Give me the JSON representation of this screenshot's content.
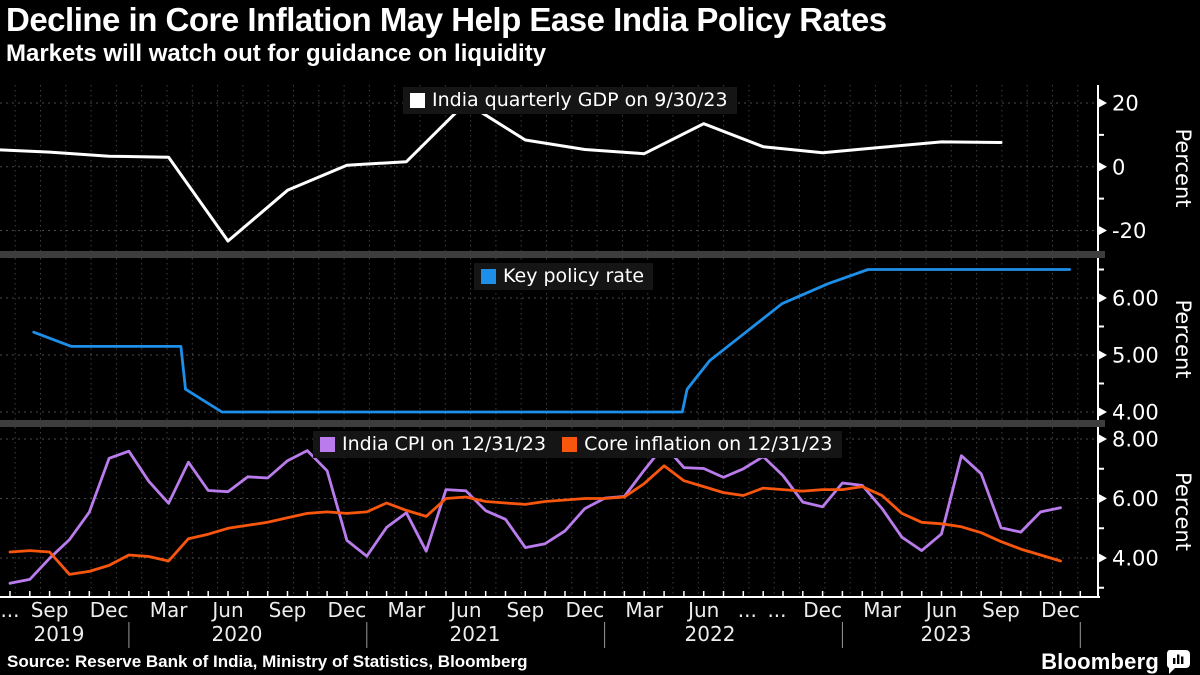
{
  "header": {
    "title": "Decline in Core Inflation May Help Ease India Policy Rates",
    "subtitle": "Markets will watch out for guidance on liquidity"
  },
  "footer": {
    "source": "Source: Reserve Bank of India, Ministry of Statistics, Bloomberg",
    "logo_text": "Bloomberg",
    "logo_icon": "bar-chart-speech-bubble-icon"
  },
  "colors": {
    "background": "#000000",
    "gdp_line": "#FFFFFF",
    "policy_line": "#1E8FE8",
    "cpi_line": "#BA7CEC",
    "core_line": "#F8560D",
    "grid_h": "#4a4a4a",
    "grid_v": "#3e3e3e",
    "divider": "#3d3d3d",
    "axis": "#FFFFFF",
    "tick_label": "#FFFFFF",
    "month_label": "#EDEDED",
    "year_separator": "#9a9a9a",
    "legend_bg": "#151515"
  },
  "dividers": [
    251,
    420
  ],
  "chart_data": [
    {
      "type": "line",
      "panel": "gdp",
      "legend": [
        {
          "label": "India quarterly GDP on 9/30/23",
          "color": "#FFFFFF",
          "marker": "square"
        }
      ],
      "ylabel": "Percent",
      "ylim": [
        -26,
        25.5
      ],
      "grid": true,
      "legend_position": "top-center",
      "top": 85,
      "bottom": 251,
      "y_map": {
        "v_top": 20,
        "y_top": 103,
        "v_bot": -20,
        "y_bot": 230.5
      },
      "yticks": [
        {
          "value": 20,
          "label": "20"
        },
        {
          "value": 0,
          "label": "0"
        },
        {
          "value": -20,
          "label": "-20"
        }
      ],
      "minor_ticks": [
        10,
        -10
      ],
      "series": [
        {
          "name": "India quarterly GDP",
          "color": "#FFFFFF",
          "width": 3,
          "points": [
            [
              "2019-06-01",
              5.4
            ],
            [
              "2019-09-01",
              4.6
            ],
            [
              "2019-12-01",
              3.3
            ],
            [
              "2020-03-01",
              3.0
            ],
            [
              "2020-06-01",
              -23.3
            ],
            [
              "2020-09-01",
              -7.4
            ],
            [
              "2020-12-01",
              0.5
            ],
            [
              "2021-03-01",
              1.6
            ],
            [
              "2021-06-01",
              20.1
            ],
            [
              "2021-09-01",
              8.4
            ],
            [
              "2021-12-01",
              5.4
            ],
            [
              "2022-03-01",
              4.1
            ],
            [
              "2022-06-01",
              13.5
            ],
            [
              "2022-09-01",
              6.3
            ],
            [
              "2022-12-01",
              4.4
            ],
            [
              "2023-03-01",
              6.1
            ],
            [
              "2023-06-01",
              7.8
            ],
            [
              "2023-09-01",
              7.6
            ]
          ]
        }
      ]
    },
    {
      "type": "line",
      "panel": "policy-rate",
      "legend": [
        {
          "label": "Key policy rate",
          "color": "#1E8FE8",
          "marker": "square"
        }
      ],
      "ylabel": "Percent",
      "ylim": [
        3.85,
        6.95
      ],
      "grid": true,
      "legend_position": "top-center",
      "top": 258,
      "bottom": 420,
      "y_map": {
        "v_top": 6.0,
        "y_top": 298,
        "v_bot": 4.0,
        "y_bot": 412
      },
      "yticks": [
        {
          "value": 6.0,
          "label": "6.00"
        },
        {
          "value": 5.0,
          "label": "5.00"
        },
        {
          "value": 4.0,
          "label": "4.00"
        }
      ],
      "minor_ticks": [
        6.5,
        5.5,
        4.5
      ],
      "series": [
        {
          "name": "Key policy rate",
          "color": "#1E8FE8",
          "width": 2.8,
          "points": [
            [
              "2019-08-07",
              5.4
            ],
            [
              "2019-10-04",
              5.15
            ],
            [
              "2020-03-20",
              5.15
            ],
            [
              "2020-03-27",
              4.4
            ],
            [
              "2020-05-22",
              4.0
            ],
            [
              "2022-04-29",
              4.0
            ],
            [
              "2022-05-06",
              4.4
            ],
            [
              "2022-06-10",
              4.9
            ],
            [
              "2022-08-05",
              5.4
            ],
            [
              "2022-09-30",
              5.9
            ],
            [
              "2022-12-09",
              6.25
            ],
            [
              "2023-02-10",
              6.5
            ],
            [
              "2023-12-15",
              6.5
            ]
          ]
        }
      ]
    },
    {
      "type": "line",
      "panel": "inflation",
      "legend": [
        {
          "label": "India CPI on 12/31/23",
          "color": "#BA7CEC",
          "marker": "square"
        },
        {
          "label": "Core inflation on 12/31/23",
          "color": "#F8560D",
          "marker": "square"
        }
      ],
      "ylabel": "Percent",
      "ylim": [
        2.7,
        8.4
      ],
      "grid": true,
      "legend_position": "top-center",
      "top": 427,
      "bottom": 596,
      "y_map": {
        "v_top": 8.0,
        "y_top": 439,
        "v_bot": 4.0,
        "y_bot": 558
      },
      "yticks": [
        {
          "value": 8.0,
          "label": "8.00"
        },
        {
          "value": 6.0,
          "label": "6.00"
        },
        {
          "value": 4.0,
          "label": "4.00"
        }
      ],
      "minor_ticks": [
        7.0,
        5.0,
        3.0
      ],
      "series": [
        {
          "name": "India CPI",
          "color": "#BA7CEC",
          "width": 2.8,
          "start_month": "2019-07",
          "values": [
            3.15,
            3.28,
            3.99,
            4.62,
            5.54,
            7.35,
            7.59,
            6.58,
            5.84,
            7.22,
            6.27,
            6.23,
            6.73,
            6.69,
            7.27,
            7.61,
            6.93,
            4.59,
            4.06,
            5.03,
            5.52,
            4.23,
            6.3,
            6.26,
            5.59,
            5.3,
            4.35,
            4.48,
            4.91,
            5.66,
            6.01,
            6.07,
            6.95,
            7.79,
            7.04,
            7.01,
            6.71,
            7.0,
            7.41,
            6.77,
            5.88,
            5.72,
            6.52,
            6.44,
            5.66,
            4.7,
            4.25,
            4.81,
            7.44,
            6.83,
            5.02,
            4.87,
            5.55,
            5.69
          ]
        },
        {
          "name": "Core inflation",
          "color": "#F8560D",
          "width": 2.8,
          "start_month": "2019-07",
          "values": [
            4.2,
            4.25,
            4.2,
            3.45,
            3.55,
            3.75,
            4.1,
            4.05,
            3.9,
            4.65,
            4.8,
            5.0,
            5.1,
            5.2,
            5.35,
            5.5,
            5.55,
            5.5,
            5.55,
            5.85,
            5.6,
            5.4,
            6.0,
            6.05,
            5.9,
            5.85,
            5.8,
            5.9,
            5.95,
            6.0,
            6.0,
            6.05,
            6.5,
            7.1,
            6.6,
            6.4,
            6.2,
            6.1,
            6.35,
            6.3,
            6.25,
            6.3,
            6.3,
            6.4,
            6.1,
            5.5,
            5.2,
            5.15,
            5.05,
            4.85,
            4.55,
            4.3,
            4.1,
            3.9
          ]
        }
      ]
    }
  ],
  "x_axis": {
    "month_labels": [
      {
        "label": "...",
        "t": 0
      },
      {
        "label": "Sep",
        "t": 2
      },
      {
        "label": "Dec",
        "t": 5
      },
      {
        "label": "Mar",
        "t": 8
      },
      {
        "label": "Jun",
        "t": 11
      },
      {
        "label": "Sep",
        "t": 14
      },
      {
        "label": "Dec",
        "t": 17
      },
      {
        "label": "Mar",
        "t": 20
      },
      {
        "label": "Jun",
        "t": 23
      },
      {
        "label": "Sep",
        "t": 26
      },
      {
        "label": "Dec",
        "t": 29
      },
      {
        "label": "Mar",
        "t": 32
      },
      {
        "label": "Jun",
        "t": 35
      },
      {
        "label": "...",
        "t": 37.2
      },
      {
        "label": "...",
        "t": 38.7
      },
      {
        "label": "Dec",
        "t": 41
      },
      {
        "label": "Mar",
        "t": 44
      },
      {
        "label": "Jun",
        "t": 47
      },
      {
        "label": "Sep",
        "t": 50
      },
      {
        "label": "Dec",
        "t": 53
      }
    ],
    "year_labels": [
      {
        "label": "2019",
        "x": 59
      },
      {
        "label": "2020",
        "x": 237
      },
      {
        "label": "2021",
        "x": 475
      },
      {
        "label": "2022",
        "x": 710
      },
      {
        "label": "2023",
        "x": 946
      }
    ],
    "year_separators_t": [
      6,
      18,
      30,
      42,
      54
    ]
  }
}
